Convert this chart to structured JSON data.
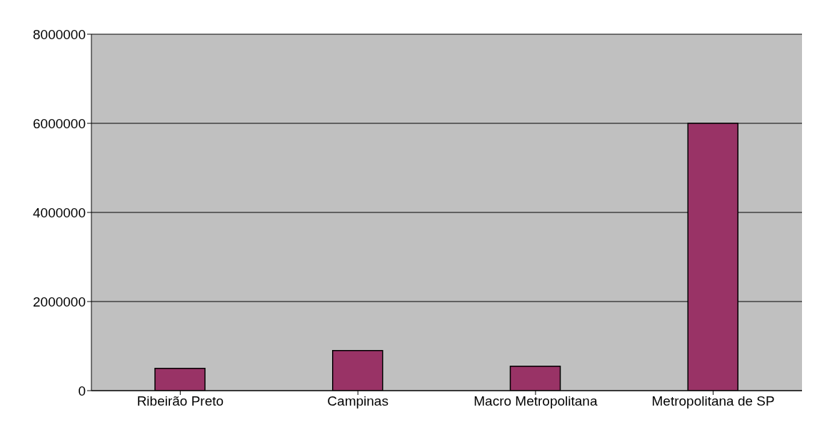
{
  "chart_data": {
    "type": "bar",
    "categories": [
      "Ribeirão Preto",
      "Campinas",
      "Macro Metropolitana",
      "Metropolitana de SP"
    ],
    "values": [
      500000,
      900000,
      550000,
      6000000
    ],
    "color": "#993366",
    "ylim": [
      0,
      8000000
    ],
    "yticks": [
      0,
      2000000,
      4000000,
      6000000,
      8000000
    ],
    "grid": "y"
  }
}
